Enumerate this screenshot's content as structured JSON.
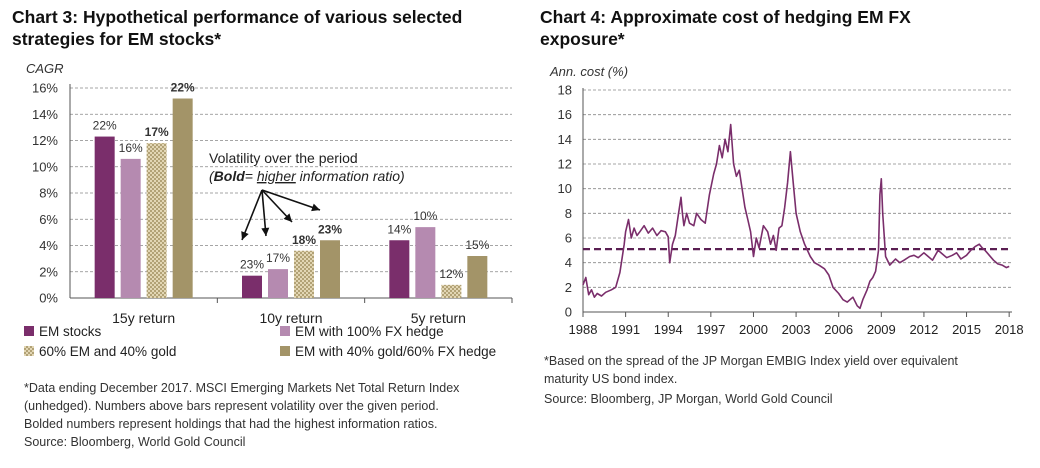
{
  "left": {
    "title_line1": "Chart 3: Hypothetical performance of various selected",
    "title_line2": "strategies for EM stocks*",
    "footnote_line1": "*Data ending December 2017. MSCI Emerging Markets Net Total Return Index",
    "footnote_line2": "(unhedged). Numbers above bars represent volatility over the given period.",
    "footnote_line3": "Bolded numbers represent holdings that had the highest information ratios.",
    "source": "Source: Bloomberg, World Gold Council",
    "annotation_line1": "Volatility over the period",
    "annotation_open": "(",
    "annotation_bold": "Bold",
    "annotation_eq": "= ",
    "annotation_underline": "higher",
    "annotation_rest": " information ratio)"
  },
  "right": {
    "title_line1": "Chart 4: Approximate cost of hedging EM FX",
    "title_line2": "exposure*",
    "footnote_line1": "*Based on the spread of the JP Morgan EMBIG Index yield over equivalent",
    "footnote_line2": "maturity US bond index.",
    "source": "Source: Bloomberg, JP Morgan, World Gold Council"
  },
  "colors": {
    "em_stocks": "#7a2e6b",
    "em_fx_hedge": "#b58ab0",
    "gold_mix": "#c8b98f",
    "gold_fx_hedge": "#a39468",
    "hedge_line": "#7a2e6b",
    "avg_line": "#5a1f52"
  },
  "chart_data": [
    {
      "type": "bar",
      "ylabel": "CAGR",
      "ylim": [
        0,
        16
      ],
      "yticks": [
        "0%",
        "2%",
        "4%",
        "6%",
        "8%",
        "10%",
        "12%",
        "14%",
        "16%"
      ],
      "categories": [
        "15y return",
        "10y return",
        "5y return"
      ],
      "series": [
        {
          "name": "EM stocks",
          "values": [
            12.3,
            1.7,
            4.4
          ],
          "labels": [
            "22%",
            "23%",
            "14%"
          ],
          "bold": [
            false,
            false,
            false
          ]
        },
        {
          "name": "EM with 100% FX hedge",
          "values": [
            10.6,
            2.2,
            5.4
          ],
          "labels": [
            "16%",
            "17%",
            "10%"
          ],
          "bold": [
            false,
            false,
            false
          ]
        },
        {
          "name": "60% EM and 40% gold",
          "values": [
            11.8,
            3.6,
            1.0
          ],
          "labels": [
            "17%",
            "18%",
            "12%"
          ],
          "bold": [
            true,
            true,
            false
          ]
        },
        {
          "name": "EM with 40% gold/60% FX hedge",
          "values": [
            15.2,
            4.4,
            3.2
          ],
          "labels": [
            "22%",
            "23%",
            "15%"
          ],
          "bold": [
            true,
            true,
            false
          ]
        }
      ],
      "legend": "bottom"
    },
    {
      "type": "line",
      "ylabel": "Ann. cost (%)",
      "ylim": [
        0,
        18
      ],
      "yticks": [
        "0",
        "2",
        "4",
        "6",
        "8",
        "10",
        "12",
        "14",
        "16",
        "18"
      ],
      "xticks": [
        "1988",
        "1991",
        "1994",
        "1997",
        "2000",
        "2003",
        "2006",
        "2009",
        "2012",
        "2015",
        "2018"
      ],
      "xlim": [
        1988,
        2018.2
      ],
      "average_line": 5.1,
      "series": [
        {
          "x": [
            1988.0,
            1988.2,
            1988.4,
            1988.6,
            1988.8,
            1989.0,
            1989.3,
            1989.6,
            1990.0,
            1990.3,
            1990.6,
            1990.9,
            1991.0,
            1991.2,
            1991.4,
            1991.6,
            1991.8,
            1992.0,
            1992.3,
            1992.6,
            1992.9,
            1993.2,
            1993.5,
            1993.8,
            1994.0,
            1994.1,
            1994.3,
            1994.5,
            1994.7,
            1994.9,
            1995.0,
            1995.1,
            1995.3,
            1995.5,
            1995.8,
            1996.0,
            1996.3,
            1996.6,
            1996.9,
            1997.2,
            1997.4,
            1997.6,
            1997.8,
            1998.0,
            1998.2,
            1998.4,
            1998.6,
            1998.8,
            1999.0,
            1999.2,
            1999.4,
            1999.6,
            1999.8,
            2000.0,
            2000.2,
            2000.4,
            2000.7,
            2001.0,
            2001.2,
            2001.4,
            2001.6,
            2001.8,
            2002.0,
            2002.2,
            2002.4,
            2002.6,
            2002.8,
            2003.0,
            2003.3,
            2003.6,
            2004.0,
            2004.3,
            2004.6,
            2005.0,
            2005.3,
            2005.6,
            2006.0,
            2006.3,
            2006.6,
            2007.0,
            2007.3,
            2007.5,
            2007.7,
            2008.0,
            2008.2,
            2008.4,
            2008.6,
            2008.8,
            2008.9,
            2009.0,
            2009.1,
            2009.3,
            2009.6,
            2010.0,
            2010.3,
            2010.6,
            2011.0,
            2011.3,
            2011.6,
            2012.0,
            2012.3,
            2012.6,
            2013.0,
            2013.3,
            2013.6,
            2014.0,
            2014.3,
            2014.6,
            2015.0,
            2015.3,
            2015.6,
            2015.9,
            2016.1,
            2016.3,
            2016.6,
            2016.9,
            2017.2,
            2017.5,
            2017.8,
            2018.0
          ],
          "y": [
            2.2,
            2.8,
            1.4,
            1.8,
            1.2,
            1.5,
            1.3,
            1.6,
            1.8,
            2.0,
            3.2,
            5.5,
            6.5,
            7.5,
            6.0,
            6.8,
            6.2,
            6.5,
            7.0,
            6.4,
            6.8,
            6.2,
            6.6,
            6.5,
            6.1,
            4.0,
            5.5,
            6.2,
            7.8,
            9.3,
            8.0,
            7.0,
            8.0,
            7.2,
            7.0,
            8.0,
            7.5,
            7.2,
            9.5,
            11.2,
            12.0,
            13.5,
            12.5,
            14.0,
            13.0,
            15.2,
            12.0,
            11.0,
            11.5,
            10.0,
            8.5,
            7.5,
            6.5,
            4.5,
            6.0,
            5.2,
            7.0,
            6.5,
            5.5,
            6.2,
            5.0,
            6.8,
            7.0,
            8.5,
            10.5,
            13.0,
            10.5,
            8.0,
            6.5,
            5.5,
            4.5,
            4.0,
            3.8,
            3.5,
            3.0,
            2.0,
            1.5,
            1.0,
            0.8,
            1.2,
            0.5,
            0.3,
            1.0,
            1.8,
            2.5,
            2.8,
            3.3,
            5.0,
            9.5,
            10.8,
            8.0,
            4.5,
            3.8,
            4.3,
            4.0,
            4.2,
            4.5,
            4.6,
            4.4,
            4.8,
            4.5,
            4.2,
            5.0,
            4.7,
            4.4,
            4.6,
            4.8,
            4.3,
            4.6,
            5.0,
            5.3,
            5.5,
            5.2,
            5.0,
            4.6,
            4.2,
            3.9,
            3.8,
            3.6,
            3.7
          ]
        }
      ],
      "note": "dashed average line"
    }
  ]
}
